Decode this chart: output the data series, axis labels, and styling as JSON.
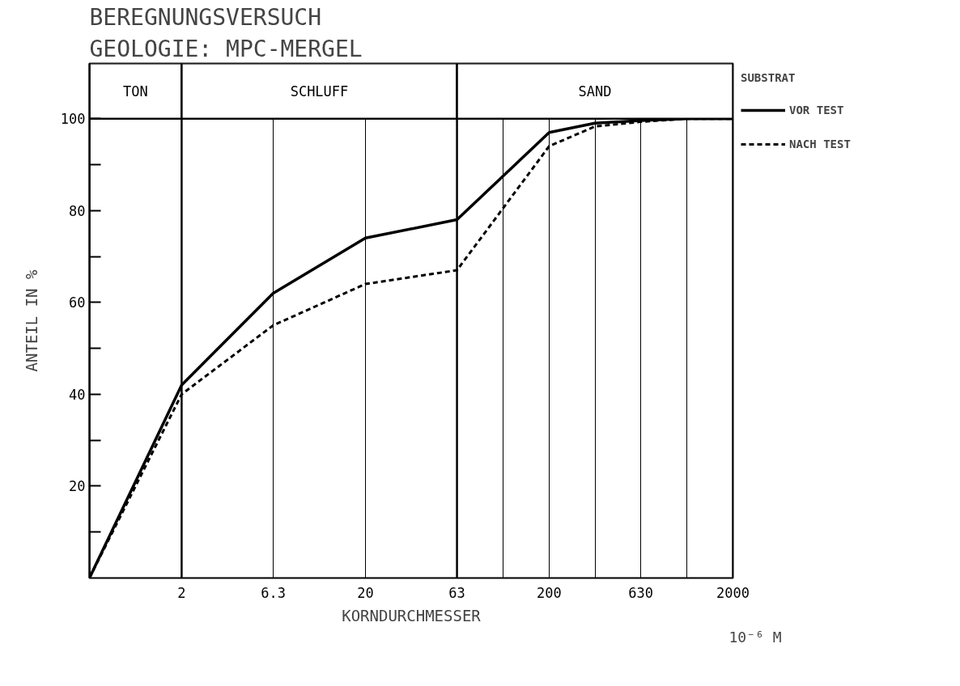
{
  "chart_data": {
    "type": "line",
    "title": "BEREGNUNGSVERSUCH",
    "subtitle": "GEOLOGIE: MPC-MERGEL",
    "xlabel": "KORNDURCHMESSER",
    "ylabel": "ANTEIL IN %",
    "legend_title": "SUBSTRAT",
    "annotations": [
      "10⁻⁶ M"
    ],
    "x": [
      0.63,
      2,
      6.3,
      20,
      63,
      200,
      355,
      630,
      1120,
      2000
    ],
    "series": [
      {
        "name": "VOR TEST",
        "color": "#000000",
        "line_style": "solid",
        "values": [
          0,
          42,
          62,
          74,
          78,
          97,
          99,
          99.6,
          100,
          100
        ]
      },
      {
        "name": "NACH TEST",
        "color": "#000000",
        "line_style": "dashed",
        "values": [
          0,
          40,
          55,
          64,
          67,
          94,
          98.3,
          99.3,
          100,
          100
        ]
      }
    ],
    "log": "x",
    "xlim": [
      0.63,
      2000
    ],
    "ylim": [
      0,
      112
    ],
    "xticks": [
      2,
      6.3,
      20,
      63,
      {
        "value": 112,
        "label": null
      },
      200,
      {
        "value": 355,
        "label": null
      },
      630,
      {
        "value": 1120,
        "label": null
      },
      2000
    ],
    "yticks": [
      {
        "value": 10,
        "label": null
      },
      20,
      {
        "value": 30,
        "label": null
      },
      40,
      {
        "value": 50,
        "label": null
      },
      60,
      {
        "value": 70,
        "label": null
      },
      80,
      {
        "value": 90,
        "label": null
      },
      100
    ],
    "ref_lines": [
      {
        "axis": "y",
        "value": 100,
        "label": null
      }
    ],
    "bands": [
      {
        "axis": "x",
        "from": 0.63,
        "to": 2,
        "label": "TON"
      },
      {
        "axis": "x",
        "from": 2,
        "to": 63,
        "label": "SCHLUFF"
      },
      {
        "axis": "x",
        "from": 63,
        "to": 2000,
        "label": "SAND"
      }
    ],
    "grid": "x",
    "legend": "right"
  }
}
